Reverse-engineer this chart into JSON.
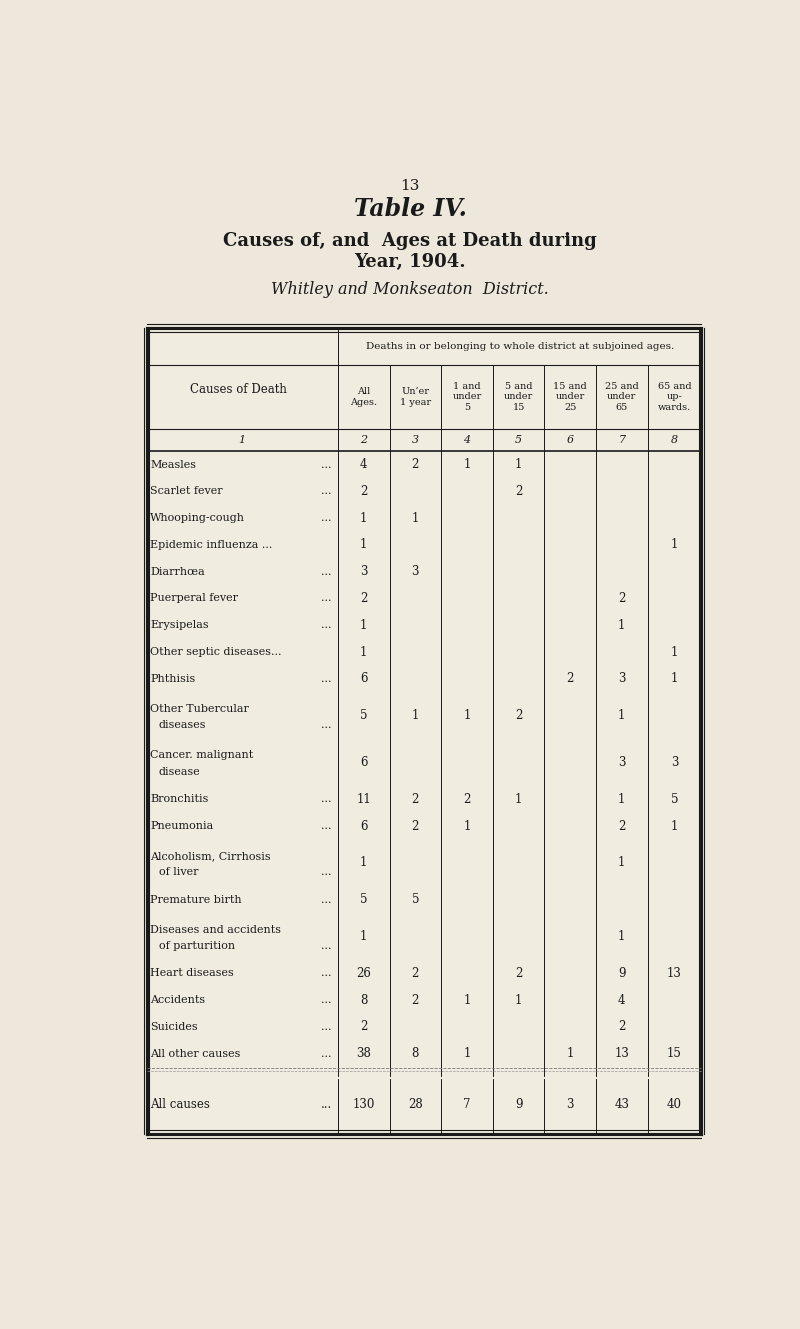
{
  "page_number": "13",
  "title_bold_italic": "Table IV.",
  "subtitle_line1": "Causes of, and  Ages at Death during",
  "subtitle_line2": "Year, 1904.",
  "subtitle2": "Whitley and Monkseaton  District.",
  "bg_color": "#ede8db",
  "table_bg": "#f0ece0",
  "col_header_main": "Deaths in or belonging to whole district at subjoined ages.",
  "col_headers_data": [
    "All\nAges.",
    "Un’er\n1 year",
    "1 and\nunder\n5",
    "5 and\nunder\n15",
    "15 and\nunder\n25",
    "25 and\nunder\n65",
    "65 and\nup-\nwards."
  ],
  "col_numbers": [
    "1",
    "2",
    "3",
    "4",
    "5",
    "6",
    "7",
    "8"
  ],
  "rows": [
    {
      "cause": "Measles",
      "dots": true,
      "vals": [
        "4",
        "2",
        "1",
        "1",
        "",
        "",
        ""
      ]
    },
    {
      "cause": "Scarlet fever",
      "dots": true,
      "vals": [
        "2",
        "",
        "",
        "2",
        "",
        "",
        ""
      ]
    },
    {
      "cause": "Whooping-cough",
      "dots": true,
      "vals": [
        "1",
        "1",
        "",
        "",
        "",
        "",
        ""
      ]
    },
    {
      "cause": "Epidemic influenza ...",
      "dots": false,
      "vals": [
        "1",
        "",
        "",
        "",
        "",
        "",
        "1"
      ]
    },
    {
      "cause": "Diarrhœa",
      "dots": true,
      "vals": [
        "3",
        "3",
        "",
        "",
        "",
        "",
        ""
      ]
    },
    {
      "cause": "Puerperal fever",
      "dots": true,
      "vals": [
        "2",
        "",
        "",
        "",
        "",
        "2",
        ""
      ]
    },
    {
      "cause": "Erysipelas",
      "dots": true,
      "vals": [
        "1",
        "",
        "",
        "",
        "",
        "1",
        ""
      ]
    },
    {
      "cause": "Other septic diseases...",
      "dots": false,
      "vals": [
        "1",
        "",
        "",
        "",
        "",
        "",
        "1"
      ]
    },
    {
      "cause": "Phthisis",
      "dots": true,
      "vals": [
        "6",
        "",
        "",
        "",
        "2",
        "3",
        "1"
      ]
    },
    {
      "cause": "Other Tubercular\n    diseases",
      "dots": true,
      "vals": [
        "5",
        "1",
        "1",
        "2",
        "",
        "1",
        ""
      ]
    },
    {
      "cause": "Cancer. malignant\n    disease",
      "dots": false,
      "vals": [
        "6",
        "",
        "",
        "",
        "",
        "3",
        "3"
      ]
    },
    {
      "cause": "Bronchitis",
      "dots": true,
      "vals": [
        "11",
        "2",
        "2",
        "1",
        "",
        "1",
        "5"
      ]
    },
    {
      "cause": "Pneumonia",
      "dots": true,
      "vals": [
        "6",
        "2",
        "1",
        "",
        "",
        "2",
        "1"
      ]
    },
    {
      "cause": "Alcoholism, Cirrhosis\n    of liver",
      "dots": true,
      "vals": [
        "1",
        "",
        "",
        "",
        "",
        "1",
        ""
      ]
    },
    {
      "cause": "Premature birth",
      "dots": true,
      "vals": [
        "5",
        "5",
        "",
        "",
        "",
        "",
        ""
      ]
    },
    {
      "cause": "Diseases and accidents\n    of parturition",
      "dots": true,
      "vals": [
        "1",
        "",
        "",
        "",
        "",
        "1",
        ""
      ]
    },
    {
      "cause": "Heart diseases",
      "dots": true,
      "vals": [
        "26",
        "2",
        "",
        "2",
        "",
        "9",
        "13"
      ]
    },
    {
      "cause": "Accidents",
      "dots": true,
      "vals": [
        "8",
        "2",
        "1",
        "1",
        "",
        "4",
        ""
      ]
    },
    {
      "cause": "Suicides",
      "dots": true,
      "vals": [
        "2",
        "",
        "",
        "",
        "",
        "2",
        ""
      ]
    },
    {
      "cause": "All other causes",
      "dots": true,
      "vals": [
        "38",
        "8",
        "1",
        "",
        "1",
        "13",
        "15"
      ]
    }
  ],
  "totals_row": [
    "All causes",
    "130",
    "28",
    "7",
    "9",
    "3",
    "43",
    "40"
  ],
  "text_color": "#1a1a1a",
  "border_color": "#1a1a1a"
}
